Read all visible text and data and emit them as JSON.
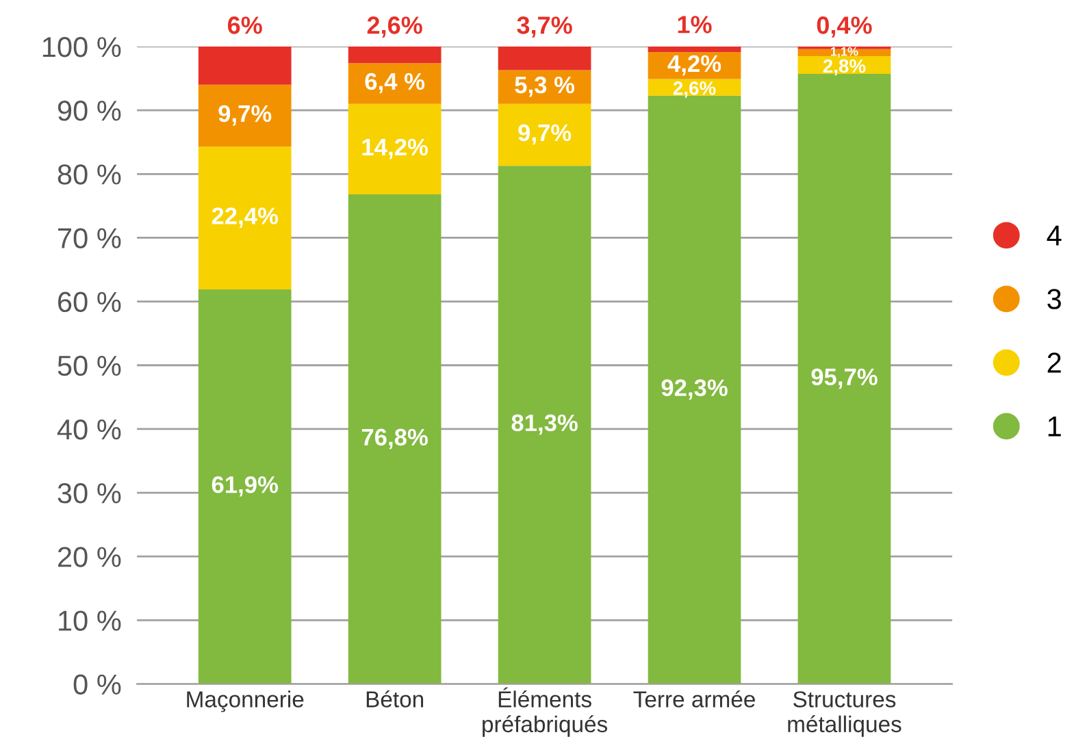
{
  "chart_data": {
    "type": "bar",
    "stacked": true,
    "categories": [
      "Maçonnerie",
      "Béton",
      "Éléments\npréfabriqués",
      "Terre armée",
      "Structures\nmétalliques"
    ],
    "series": [
      {
        "name": "1",
        "color": "#82b93f",
        "values": [
          61.9,
          76.8,
          81.3,
          92.3,
          95.7
        ],
        "value_labels": [
          "61,9%",
          "76,8%",
          "81,3%",
          "92,3%",
          "95,7%"
        ]
      },
      {
        "name": "2",
        "color": "#f7d100",
        "values": [
          22.4,
          14.2,
          9.7,
          2.6,
          2.8
        ],
        "value_labels": [
          "22,4%",
          "14,2%",
          "9,7%",
          "2,6%",
          "2,8%"
        ]
      },
      {
        "name": "3",
        "color": "#f39200",
        "values": [
          9.7,
          6.4,
          5.3,
          4.2,
          1.1
        ],
        "value_labels": [
          "9,7%",
          "6,4 %",
          "5,3 %",
          "4,2%",
          "1,1%"
        ]
      },
      {
        "name": "4",
        "color": "#e63027",
        "values": [
          6,
          2.6,
          3.7,
          1,
          0.4
        ],
        "value_labels": [
          "6%",
          "2,6%",
          "3,7%",
          "1%",
          "0,4%"
        ]
      }
    ],
    "ylim": [
      0,
      100
    ],
    "yticks": [
      {
        "value": 0,
        "label": "0 %"
      },
      {
        "value": 10,
        "label": "10 %"
      },
      {
        "value": 20,
        "label": "20 %"
      },
      {
        "value": 30,
        "label": "30 %"
      },
      {
        "value": 40,
        "label": "40 %"
      },
      {
        "value": 50,
        "label": "50 %"
      },
      {
        "value": 60,
        "label": "60 %"
      },
      {
        "value": 70,
        "label": "70 %"
      },
      {
        "value": 80,
        "label": "80 %"
      },
      {
        "value": 90,
        "label": "90 %"
      },
      {
        "value": 100,
        "label": "100 %"
      }
    ],
    "grid": "y",
    "legend": "right"
  }
}
